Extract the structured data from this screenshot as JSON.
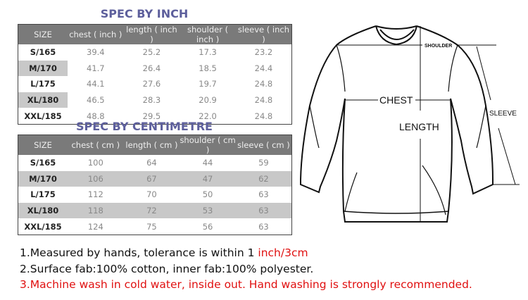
{
  "inch_table": {
    "title": "SPEC BY INCH",
    "headers": [
      "SIZE",
      "chest ( inch )",
      "length ( inch )",
      "shoulder ( inch )",
      "sleeve ( inch )"
    ],
    "rows": [
      [
        "S/165",
        "39.4",
        "25.2",
        "17.3",
        "23.2"
      ],
      [
        "M/170",
        "41.7",
        "26.4",
        "18.5",
        "24.4"
      ],
      [
        "L/175",
        "44.1",
        "27.6",
        "19.7",
        "24.8"
      ],
      [
        "XL/180",
        "46.5",
        "28.3",
        "20.9",
        "24.8"
      ],
      [
        "XXL/185",
        "48.8",
        "29.5",
        "22.0",
        "24.8"
      ]
    ]
  },
  "cm_table": {
    "title": "SPEC BY CENTIMETRE",
    "headers": [
      "SIZE",
      "chest ( cm )",
      "length ( cm )",
      "shoulder ( cm )",
      "sleeve ( cm )"
    ],
    "rows": [
      [
        "S/165",
        "100",
        "64",
        "44",
        "59"
      ],
      [
        "M/170",
        "106",
        "67",
        "47",
        "62"
      ],
      [
        "L/175",
        "112",
        "70",
        "50",
        "63"
      ],
      [
        "XL/180",
        "118",
        "72",
        "53",
        "63"
      ],
      [
        "XXL/185",
        "124",
        "75",
        "56",
        "63"
      ]
    ]
  },
  "diagram": {
    "shoulder": "SHOULDER",
    "chest": "CHEST",
    "length": "LENGTH",
    "sleeve": "SLEEVE"
  },
  "notes": {
    "line1_prefix": "1.Measured by hands, tolerance is within 1 ",
    "line1_red": "inch/3cm",
    "line2": "2.Surface fab:100% cotton, inner fab:100% polyester.",
    "line3": "3.Machine wash in cold water, inside out. Hand washing is strongly recommended."
  },
  "colors": {
    "title": "#5d5f9c",
    "header_bg": "#7a7a7a",
    "alt_row": "#c8c8c8",
    "warning": "#e01010"
  }
}
